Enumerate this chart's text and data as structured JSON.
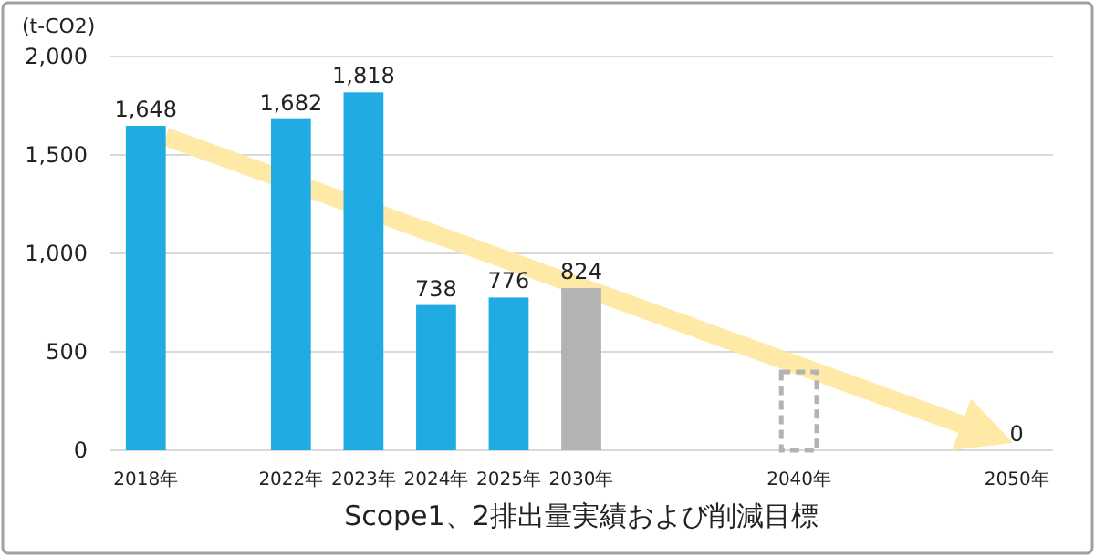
{
  "chart_data": {
    "type": "bar",
    "title": "Scope1、2排出量実績および削減目標",
    "ylabel": "(t-CO2)",
    "categories": [
      "2018年",
      null,
      "2022年",
      "2023年",
      "2024年",
      "2025年",
      "2030年",
      null,
      null,
      "2040年",
      null,
      null,
      "2050年"
    ],
    "stacked": true,
    "series": [
      {
        "values": [
          1648,
          null,
          1682,
          1818,
          738,
          776,
          824,
          null,
          null,
          null,
          null,
          null,
          0
        ],
        "colors": [
          "#20ace2",
          null,
          "#20ace2",
          "#20ace2",
          "#20ace2",
          "#20ace2",
          "#b3b3b3",
          null,
          null,
          null,
          null,
          null,
          "#b3b3b3"
        ],
        "value_labels": [
          "1,648",
          null,
          "1,682",
          "1,818",
          "738",
          "776",
          "824",
          null,
          null,
          null,
          null,
          null,
          "0"
        ]
      },
      {
        "values": [
          null,
          null,
          null,
          null,
          null,
          null,
          null,
          null,
          null,
          410,
          null,
          null,
          null
        ],
        "color": "#b3b3b3",
        "line_style": "dashed"
      }
    ],
    "ylim": [
      0,
      2000
    ],
    "yticks": [
      0,
      500,
      {
        "value": 1000,
        "label": "1,000"
      },
      {
        "value": 1500,
        "label": "1,500"
      },
      {
        "value": 2000,
        "label": "2,000"
      }
    ],
    "grid": "y"
  }
}
